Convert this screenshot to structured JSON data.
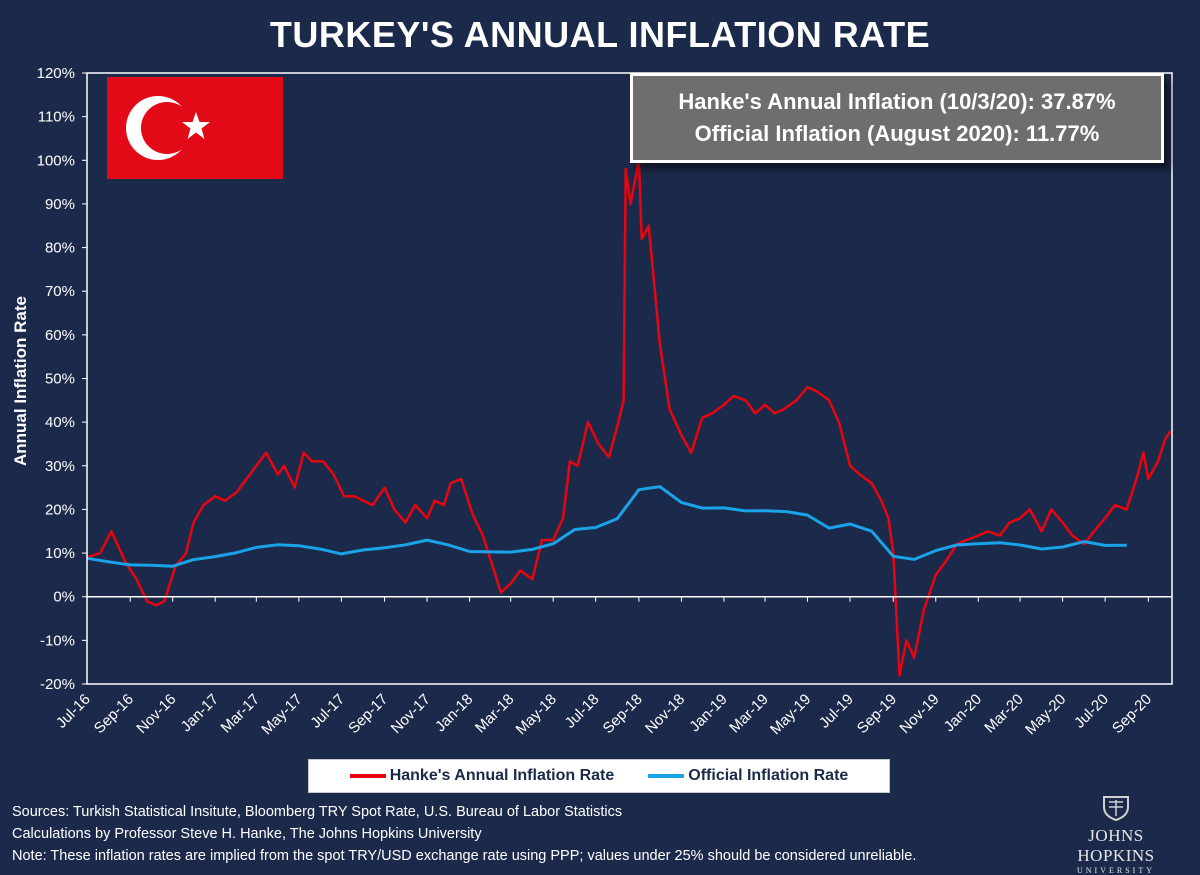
{
  "title": "TURKEY'S ANNUAL INFLATION RATE",
  "callout": {
    "line1": "Hanke's Annual Inflation (10/3/20): 37.87%",
    "line2": "Official Inflation (August 2020): 11.77%"
  },
  "flag": {
    "background": "#e30a17",
    "symbol": "#ffffff"
  },
  "legend": {
    "hanke_label": "Hanke's Annual Inflation Rate",
    "official_label": "Official Inflation Rate"
  },
  "notes": {
    "sources": "Sources: Turkish Statistical Insitute, Bloomberg TRY Spot Rate, U.S. Bureau of Labor Statistics",
    "calculations": "Calculations by Professor Steve H. Hanke, The Johns Hopkins University",
    "note": "Note: These inflation rates are implied from the spot TRY/USD exchange rate using PPP; values under 25% should be considered unreliable."
  },
  "logo": {
    "name": "JOHNS HOPKINS",
    "sub": "UNIVERSITY"
  },
  "chart_data": {
    "type": "line",
    "title": "TURKEY'S ANNUAL INFLATION RATE",
    "xlabel": "",
    "ylabel": "Annual Inflation Rate",
    "ylim": [
      -20,
      120
    ],
    "yticks": [
      -20,
      -10,
      0,
      10,
      20,
      30,
      40,
      50,
      60,
      70,
      80,
      90,
      100,
      110,
      120
    ],
    "ytick_format": "percent",
    "xlim": [
      "2016-07-01",
      "2020-10-05"
    ],
    "xtick_labels": [
      "Jul-16",
      "Sep-16",
      "Nov-16",
      "Jan-17",
      "Mar-17",
      "May-17",
      "Jul-17",
      "Sep-17",
      "Nov-17",
      "Jan-18",
      "Mar-18",
      "May-18",
      "Jul-18",
      "Sep-18",
      "Nov-18",
      "Jan-19",
      "Mar-19",
      "May-19",
      "Jul-19",
      "Sep-19",
      "Nov-19",
      "Jan-20",
      "Mar-20",
      "May-20",
      "Jul-20",
      "Sep-20"
    ],
    "grid": false,
    "legend_position": "bottom",
    "colors": {
      "hanke": "#e8050f",
      "official": "#1aa3e8",
      "plot_background": "#1b2a4a",
      "axis": "#ffffff"
    },
    "series": [
      {
        "name": "Hanke's Annual Inflation Rate",
        "x": [
          "2016-07-01",
          "2016-07-20",
          "2016-08-05",
          "2016-08-25",
          "2016-09-10",
          "2016-09-25",
          "2016-10-08",
          "2016-10-20",
          "2016-11-05",
          "2016-11-20",
          "2016-12-01",
          "2016-12-15",
          "2017-01-01",
          "2017-01-15",
          "2017-02-01",
          "2017-02-15",
          "2017-03-01",
          "2017-03-15",
          "2017-04-01",
          "2017-04-10",
          "2017-04-25",
          "2017-05-08",
          "2017-05-20",
          "2017-06-05",
          "2017-06-20",
          "2017-07-05",
          "2017-07-20",
          "2017-08-01",
          "2017-08-15",
          "2017-09-01",
          "2017-09-15",
          "2017-10-01",
          "2017-10-15",
          "2017-11-01",
          "2017-11-12",
          "2017-11-25",
          "2017-12-05",
          "2017-12-20",
          "2018-01-05",
          "2018-01-20",
          "2018-02-01",
          "2018-02-15",
          "2018-03-01",
          "2018-03-15",
          "2018-04-01",
          "2018-04-15",
          "2018-05-01",
          "2018-05-15",
          "2018-05-25",
          "2018-06-05",
          "2018-06-20",
          "2018-07-05",
          "2018-07-20",
          "2018-08-01",
          "2018-08-10",
          "2018-08-13",
          "2018-08-20",
          "2018-09-01",
          "2018-09-05",
          "2018-09-15",
          "2018-10-01",
          "2018-10-15",
          "2018-11-01",
          "2018-11-15",
          "2018-12-01",
          "2018-12-15",
          "2019-01-01",
          "2019-01-15",
          "2019-02-01",
          "2019-02-15",
          "2019-03-01",
          "2019-03-15",
          "2019-03-28",
          "2019-04-15",
          "2019-05-01",
          "2019-05-15",
          "2019-06-01",
          "2019-06-15",
          "2019-07-01",
          "2019-07-15",
          "2019-08-01",
          "2019-08-15",
          "2019-08-25",
          "2019-09-01",
          "2019-09-10",
          "2019-09-20",
          "2019-10-01",
          "2019-10-15",
          "2019-11-01",
          "2019-11-15",
          "2019-12-01",
          "2019-12-15",
          "2020-01-01",
          "2020-01-15",
          "2020-02-01",
          "2020-02-15",
          "2020-03-01",
          "2020-03-15",
          "2020-04-01",
          "2020-04-15",
          "2020-05-01",
          "2020-05-15",
          "2020-06-01",
          "2020-06-15",
          "2020-07-01",
          "2020-07-15",
          "2020-08-01",
          "2020-08-15",
          "2020-08-25",
          "2020-09-01",
          "2020-09-15",
          "2020-09-25",
          "2020-10-03"
        ],
        "values": [
          9,
          10,
          15,
          8,
          4,
          -1,
          -2,
          -1,
          7,
          10,
          17,
          21,
          23,
          22,
          24,
          27,
          30,
          33,
          28,
          30,
          25,
          33,
          31,
          31,
          28,
          23,
          23,
          22,
          21,
          25,
          20,
          17,
          21,
          18,
          22,
          21,
          26,
          27,
          19,
          14,
          8,
          1,
          3,
          6,
          4,
          13,
          13,
          18,
          31,
          30,
          40,
          35,
          32,
          39,
          45,
          98,
          90,
          100,
          82,
          85,
          58,
          43,
          37,
          33,
          41,
          42,
          44,
          46,
          45,
          42,
          44,
          42,
          43,
          45,
          48,
          47,
          45,
          40,
          30,
          28,
          26,
          22,
          18,
          10,
          -18,
          -10,
          -14,
          -3,
          5,
          8,
          12,
          13,
          14,
          15,
          14,
          17,
          18,
          20,
          15,
          20,
          17,
          14,
          12,
          15,
          18,
          21,
          20,
          27,
          33,
          27,
          31,
          36,
          38
        ]
      },
      {
        "name": "Official Inflation Rate",
        "x": [
          "2016-07-01",
          "2016-08-01",
          "2016-09-01",
          "2016-10-01",
          "2016-11-01",
          "2016-12-01",
          "2017-01-01",
          "2017-02-01",
          "2017-03-01",
          "2017-04-01",
          "2017-05-01",
          "2017-06-01",
          "2017-07-01",
          "2017-08-01",
          "2017-09-01",
          "2017-10-01",
          "2017-11-01",
          "2017-12-01",
          "2018-01-01",
          "2018-02-01",
          "2018-03-01",
          "2018-04-01",
          "2018-05-01",
          "2018-06-01",
          "2018-07-01",
          "2018-08-01",
          "2018-09-01",
          "2018-10-01",
          "2018-11-01",
          "2018-12-01",
          "2019-01-01",
          "2019-02-01",
          "2019-03-01",
          "2019-04-01",
          "2019-05-01",
          "2019-06-01",
          "2019-07-01",
          "2019-08-01",
          "2019-09-01",
          "2019-10-01",
          "2019-11-01",
          "2019-12-01",
          "2020-01-01",
          "2020-02-01",
          "2020-03-01",
          "2020-04-01",
          "2020-05-01",
          "2020-06-01",
          "2020-07-01",
          "2020-08-01"
        ],
        "values": [
          8.8,
          8.0,
          7.3,
          7.2,
          7.0,
          8.5,
          9.2,
          10.1,
          11.3,
          11.9,
          11.7,
          10.9,
          9.8,
          10.7,
          11.2,
          11.9,
          12.98,
          11.9,
          10.35,
          10.26,
          10.23,
          10.85,
          12.15,
          15.4,
          15.85,
          17.9,
          24.52,
          25.24,
          21.62,
          20.3,
          20.35,
          19.67,
          19.71,
          19.5,
          18.71,
          15.72,
          16.65,
          15.01,
          9.26,
          8.55,
          10.56,
          11.84,
          12.15,
          12.37,
          11.86,
          10.94,
          11.39,
          12.62,
          11.76,
          11.77
        ]
      }
    ]
  }
}
